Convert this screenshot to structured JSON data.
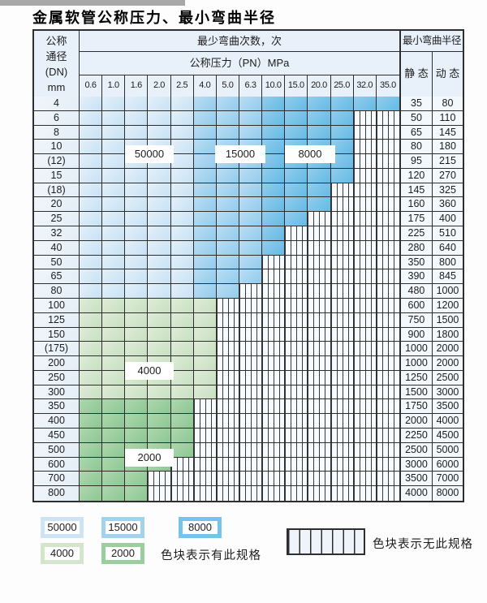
{
  "title": "金属软管公称压力、最小弯曲半径",
  "header": {
    "dn_lines": [
      "公称",
      "通径",
      "(DN)",
      "mm"
    ],
    "min_bend_cycles": "最少弯曲次数，次",
    "nominal_pressure": "公称压力（PN）MPa",
    "pressures": [
      "0.6",
      "1.0",
      "1.6",
      "2.0",
      "2.5",
      "4.0",
      "5.0",
      "6.3",
      "10.0",
      "15.0",
      "20.0",
      "25.0",
      "32.0",
      "35.0"
    ],
    "min_bend_radius": "最小弯曲半径",
    "static_label": "静 态",
    "dynamic_label": "动 态"
  },
  "colors": {
    "cycles_50000": "#cde4f4",
    "cycles_15000": "#a3d2ee",
    "cycles_8000": "#79c2e9",
    "cycles_4000": "#d3e6cb",
    "cycles_2000": "#9bce9e",
    "grid": "#2e2e2e"
  },
  "region_labels": [
    {
      "id": "r50000",
      "text": "50000"
    },
    {
      "id": "r15000",
      "text": "15000"
    },
    {
      "id": "r8000",
      "text": "8000"
    },
    {
      "id": "r4000",
      "text": "4000"
    },
    {
      "id": "r2000",
      "text": "2000"
    }
  ],
  "rows": [
    {
      "dn": "4",
      "static": "35",
      "dynamic": "80",
      "palette": "blue",
      "colored_through": 14
    },
    {
      "dn": "6",
      "static": "50",
      "dynamic": "110",
      "palette": "blue",
      "colored_through": 12
    },
    {
      "dn": "8",
      "static": "65",
      "dynamic": "145",
      "palette": "blue",
      "colored_through": 12
    },
    {
      "dn": "10",
      "static": "80",
      "dynamic": "180",
      "palette": "blue",
      "colored_through": 12
    },
    {
      "dn": "(12)",
      "static": "95",
      "dynamic": "215",
      "palette": "blue",
      "colored_through": 12
    },
    {
      "dn": "15",
      "static": "120",
      "dynamic": "270",
      "palette": "blue",
      "colored_through": 12
    },
    {
      "dn": "(18)",
      "static": "145",
      "dynamic": "325",
      "palette": "blue",
      "colored_through": 11
    },
    {
      "dn": "20",
      "static": "160",
      "dynamic": "360",
      "palette": "blue",
      "colored_through": 11
    },
    {
      "dn": "25",
      "static": "175",
      "dynamic": "400",
      "palette": "blue",
      "colored_through": 10
    },
    {
      "dn": "32",
      "static": "225",
      "dynamic": "510",
      "palette": "blue",
      "colored_through": 9
    },
    {
      "dn": "40",
      "static": "280",
      "dynamic": "640",
      "palette": "blue",
      "colored_through": 9
    },
    {
      "dn": "50",
      "static": "350",
      "dynamic": "800",
      "palette": "blue",
      "colored_through": 8
    },
    {
      "dn": "65",
      "static": "390",
      "dynamic": "845",
      "palette": "blue",
      "colored_through": 8
    },
    {
      "dn": "80",
      "static": "480",
      "dynamic": "1000",
      "palette": "blue",
      "colored_through": 7
    },
    {
      "dn": "100",
      "static": "600",
      "dynamic": "1200",
      "palette": "g4",
      "colored_through": 6
    },
    {
      "dn": "125",
      "static": "750",
      "dynamic": "1500",
      "palette": "g4",
      "colored_through": 6
    },
    {
      "dn": "150",
      "static": "900",
      "dynamic": "1800",
      "palette": "g4",
      "colored_through": 6
    },
    {
      "dn": "(175)",
      "static": "1000",
      "dynamic": "2000",
      "palette": "g4",
      "colored_through": 6
    },
    {
      "dn": "200",
      "static": "1000",
      "dynamic": "2000",
      "palette": "g4",
      "colored_through": 6
    },
    {
      "dn": "250",
      "static": "1250",
      "dynamic": "2500",
      "palette": "g4",
      "colored_through": 6
    },
    {
      "dn": "300",
      "static": "1500",
      "dynamic": "3000",
      "palette": "g4",
      "colored_through": 6
    },
    {
      "dn": "350",
      "static": "1750",
      "dynamic": "3500",
      "palette": "g2",
      "colored_through": 5
    },
    {
      "dn": "400",
      "static": "2000",
      "dynamic": "4000",
      "palette": "g2",
      "colored_through": 5
    },
    {
      "dn": "450",
      "static": "2250",
      "dynamic": "4500",
      "palette": "g2",
      "colored_through": 5
    },
    {
      "dn": "500",
      "static": "2500",
      "dynamic": "5000",
      "palette": "g2",
      "colored_through": 5
    },
    {
      "dn": "600",
      "static": "3000",
      "dynamic": "6000",
      "palette": "g2",
      "colored_through": 4
    },
    {
      "dn": "700",
      "static": "3500",
      "dynamic": "7000",
      "palette": "g2",
      "colored_through": 3
    },
    {
      "dn": "800",
      "static": "4000",
      "dynamic": "8000",
      "palette": "g2",
      "colored_through": 3
    }
  ],
  "legend": {
    "swatches": [
      {
        "id": "s50000",
        "text": "50000",
        "color": "#cde4f4"
      },
      {
        "id": "s15000",
        "text": "15000",
        "color": "#a3d2ee"
      },
      {
        "id": "s8000",
        "text": "8000",
        "color": "#79c2e9"
      },
      {
        "id": "s4000",
        "text": "4000",
        "color": "#d3e6cb"
      },
      {
        "id": "s2000",
        "text": "2000",
        "color": "#9bce9e"
      }
    ],
    "has_spec_text": "色块表示有此规格",
    "no_spec_text": "色块表示无此规格"
  }
}
